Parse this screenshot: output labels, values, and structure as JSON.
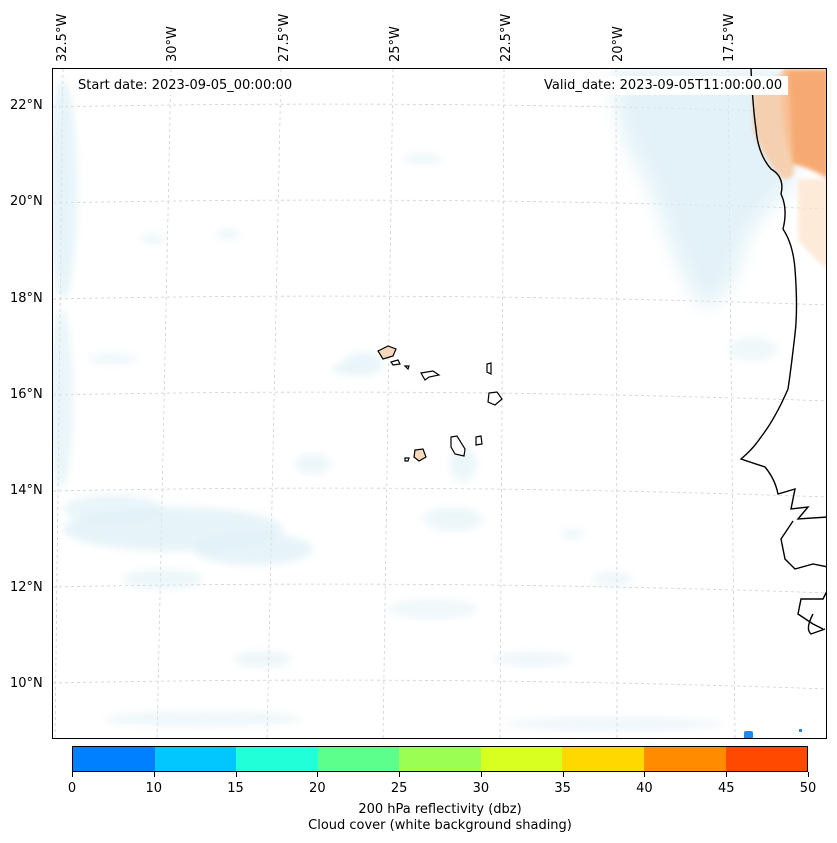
{
  "header": {
    "start_date": "Start date: 2023-09-05_00:00:00",
    "valid_date": "Valid_date: 2023-09-05T11:00:00.00"
  },
  "axes": {
    "longitude_labels": [
      "32.5°W",
      "30°W",
      "27.5°W",
      "25°W",
      "22.5°W",
      "20°W",
      "17.5°W"
    ],
    "latitude_labels": [
      "22°N",
      "20°N",
      "18°N",
      "16°N",
      "14°N",
      "12°N",
      "10°N"
    ]
  },
  "colorbar": {
    "ticks": [
      "0",
      "10",
      "15",
      "20",
      "25",
      "30",
      "35",
      "40",
      "45",
      "50"
    ],
    "colors": [
      "#0080ff",
      "#00c8ff",
      "#20ffd8",
      "#5cff8c",
      "#9aff52",
      "#d8ff20",
      "#ffd800",
      "#ff8c00",
      "#ff4800"
    ],
    "title": "200 hPa reflectivity (dbz)",
    "subtitle": "Cloud cover (white background shading)"
  },
  "colors": {
    "cloud": "#d6ecf4",
    "land_warm": "#f6a56a",
    "island_fill": "#f8d8bc",
    "gridline": "#cccccc"
  }
}
